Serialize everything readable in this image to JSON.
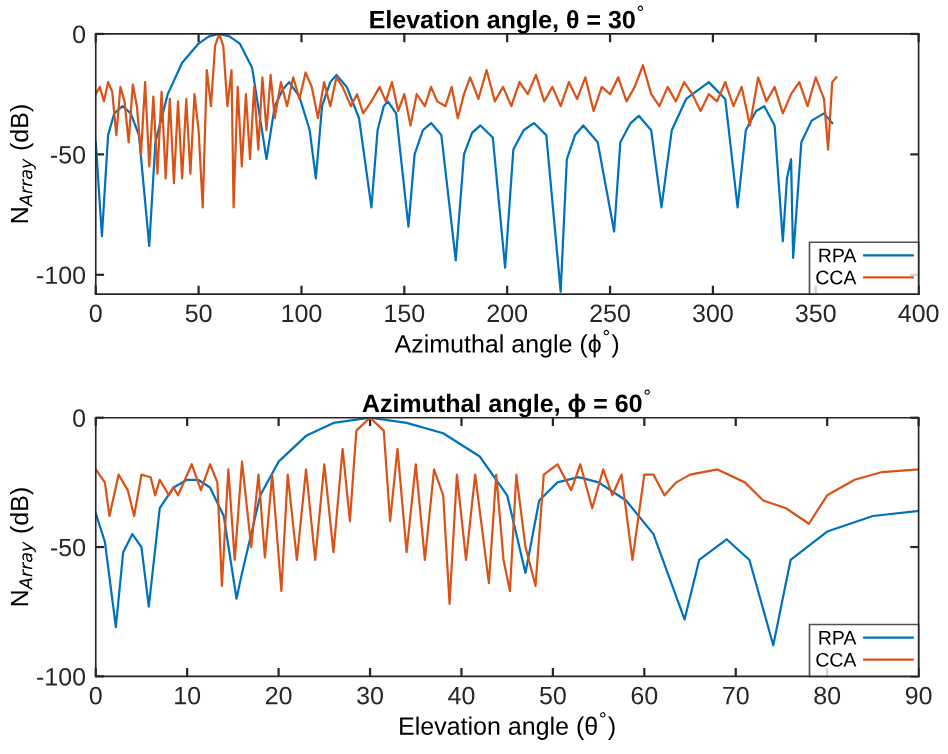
{
  "chart_data": [
    {
      "type": "line",
      "title": "Elevation angle, θ = 30$^{°}$",
      "xlabel": "Azimuthal angle (ϕ$^{°}$)",
      "ylabel": "N$_{Array}$ (dB)",
      "xlim": [
        0,
        400
      ],
      "xticks": [
        0,
        50,
        100,
        150,
        200,
        250,
        300,
        350,
        400
      ],
      "ylim": [
        -108,
        0
      ],
      "yticks": [
        -100,
        -50,
        0
      ],
      "grid": false,
      "legend": "bottom right",
      "series": [
        {
          "name": "RPA",
          "color": "#0072bd",
          "x": [
            0,
            3,
            6,
            9,
            13,
            17,
            21,
            26,
            29,
            35,
            42,
            50,
            55,
            60,
            65,
            70,
            76,
            83,
            87,
            91,
            94,
            99,
            104,
            107,
            110,
            114,
            117,
            122,
            128,
            134,
            137,
            140,
            142,
            146,
            152,
            155,
            159,
            163,
            168,
            175,
            179,
            183,
            187,
            193,
            199,
            203,
            208,
            213,
            219,
            226,
            229,
            233,
            237,
            244,
            252,
            255,
            260,
            264,
            270,
            275,
            280,
            287,
            298,
            306,
            312,
            316,
            321,
            325,
            330,
            334,
            336,
            338,
            339,
            343,
            348,
            354,
            358
          ],
          "values": [
            -45,
            -84,
            -42,
            -33,
            -30,
            -33,
            -42,
            -88,
            -45,
            -25,
            -12,
            -4,
            -1,
            0,
            -1,
            -4,
            -14,
            -52,
            -30,
            -23,
            -20,
            -26,
            -40,
            -60,
            -30,
            -20,
            -17,
            -22,
            -35,
            -72,
            -40,
            -30,
            -28,
            -33,
            -80,
            -50,
            -40,
            -37,
            -42,
            -94,
            -50,
            -41,
            -38,
            -43,
            -97,
            -48,
            -40,
            -37,
            -42,
            -107,
            -52,
            -42,
            -38,
            -45,
            -82,
            -45,
            -37,
            -34,
            -40,
            -72,
            -40,
            -27,
            -20,
            -27,
            -72,
            -40,
            -32,
            -30,
            -38,
            -86,
            -60,
            -52,
            -93,
            -45,
            -36,
            -33,
            -37
          ]
        },
        {
          "name": "CCA",
          "color": "#d95319",
          "x": [
            0,
            2,
            4,
            6,
            8,
            10,
            12,
            14,
            16,
            18,
            20,
            22,
            24,
            26,
            28,
            30,
            32,
            34,
            36,
            38,
            40,
            42,
            44,
            46,
            48,
            50,
            52,
            54,
            56,
            58,
            60,
            62,
            64,
            66,
            67,
            69,
            71,
            73,
            75,
            77,
            79,
            81,
            83,
            85,
            87,
            90,
            93,
            96,
            99,
            102,
            105,
            108,
            111,
            114,
            117,
            120,
            124,
            127,
            130,
            134,
            138,
            141,
            144,
            147,
            150,
            153,
            156,
            160,
            163,
            166,
            170,
            173,
            176,
            179,
            182,
            186,
            190,
            194,
            198,
            202,
            206,
            210,
            214,
            218,
            222,
            226,
            230,
            234,
            238,
            242,
            246,
            250,
            254,
            258,
            262,
            266,
            270,
            274,
            278,
            282,
            286,
            290,
            294,
            298,
            302,
            306,
            310,
            314,
            318,
            322,
            326,
            330,
            334,
            338,
            342,
            346,
            350,
            354,
            356,
            358,
            360
          ],
          "values": [
            -25,
            -22,
            -28,
            -20,
            -24,
            -42,
            -22,
            -28,
            -45,
            -21,
            -30,
            -50,
            -20,
            -55,
            -26,
            -58,
            -24,
            -60,
            -27,
            -62,
            -28,
            -60,
            -27,
            -58,
            -25,
            -40,
            -72,
            -15,
            -30,
            -5,
            0,
            -5,
            -30,
            -15,
            -72,
            -22,
            -55,
            -25,
            -52,
            -22,
            -48,
            -18,
            -40,
            -17,
            -35,
            -20,
            -30,
            -18,
            -27,
            -16,
            -22,
            -35,
            -20,
            -30,
            -18,
            -22,
            -30,
            -25,
            -33,
            -28,
            -22,
            -28,
            -20,
            -32,
            -25,
            -38,
            -25,
            -30,
            -22,
            -28,
            -30,
            -22,
            -35,
            -25,
            -18,
            -27,
            -15,
            -28,
            -22,
            -30,
            -20,
            -25,
            -17,
            -28,
            -22,
            -30,
            -20,
            -27,
            -18,
            -32,
            -22,
            -25,
            -18,
            -28,
            -22,
            -13,
            -25,
            -30,
            -22,
            -28,
            -20,
            -25,
            -32,
            -25,
            -28,
            -20,
            -30,
            -22,
            -38,
            -18,
            -28,
            -22,
            -33,
            -25,
            -20,
            -30,
            -18,
            -27,
            -48,
            -20,
            -18
          ]
        }
      ]
    },
    {
      "type": "line",
      "title": "Azimuthal angle, ϕ = 60$^{°}$",
      "xlabel": "Elevation angle (θ$^{°}$)",
      "ylabel": "N$_{Array}$ (dB)",
      "xlim": [
        0,
        90
      ],
      "xticks": [
        0,
        10,
        20,
        30,
        40,
        50,
        60,
        70,
        80,
        90
      ],
      "ylim": [
        -100,
        0
      ],
      "yticks": [
        -100,
        -50,
        0
      ],
      "grid": false,
      "legend": "bottom right",
      "series": [
        {
          "name": "RPA",
          "color": "#0072bd",
          "x": [
            0,
            1,
            2.2,
            3,
            4,
            5,
            5.8,
            7,
            8.5,
            10,
            11.2,
            12.5,
            14,
            15.4,
            16,
            18,
            20,
            23,
            26,
            30,
            34,
            38,
            42,
            45,
            47,
            48.5,
            50.5,
            52.8,
            55,
            58,
            61,
            64.4,
            66,
            69,
            71.5,
            74.1,
            76,
            80,
            85,
            90
          ],
          "values": [
            -37,
            -48,
            -81,
            -52,
            -45,
            -50,
            -73,
            -35,
            -27,
            -24,
            -24,
            -27,
            -38,
            -70,
            -60,
            -30,
            -17,
            -7,
            -2,
            0,
            -2,
            -6,
            -15,
            -30,
            -60,
            -32,
            -25,
            -23,
            -25,
            -32,
            -45,
            -78,
            -55,
            -47,
            -55,
            -88,
            -55,
            -44,
            -38,
            -36
          ]
        },
        {
          "name": "CCA",
          "color": "#d95319",
          "x": [
            0,
            1,
            1.5,
            2.5,
            3.5,
            4.2,
            5,
            6,
            6.5,
            7,
            8,
            8.5,
            9,
            10.5,
            11.5,
            12.5,
            13.3,
            13.8,
            14.5,
            15.2,
            16,
            17,
            17.8,
            18.5,
            19.3,
            20.3,
            21,
            22,
            23,
            24,
            25,
            26,
            27,
            27.8,
            28.5,
            30,
            31.5,
            32.2,
            33,
            34,
            35,
            36,
            37,
            38,
            38.7,
            39.5,
            40.5,
            41.5,
            43,
            43.8,
            44.6,
            45.3,
            46,
            47,
            48.1,
            49,
            50.5,
            52,
            53,
            54.3,
            55.5,
            56.5,
            57.5,
            58.7,
            60,
            61,
            62.2,
            63.5,
            65,
            68,
            71,
            73,
            75.5,
            78,
            80,
            83,
            86,
            90
          ],
          "values": [
            -20,
            -25,
            -38,
            -22,
            -28,
            -38,
            -22,
            -23,
            -30,
            -24,
            -30,
            -27,
            -30,
            -18,
            -28,
            -18,
            -25,
            -65,
            -20,
            -55,
            -17,
            -50,
            -22,
            -54,
            -22,
            -67,
            -22,
            -55,
            -20,
            -55,
            -18,
            -52,
            -12,
            -40,
            -5,
            0,
            -5,
            -40,
            -12,
            -52,
            -18,
            -55,
            -20,
            -30,
            -72,
            -22,
            -55,
            -22,
            -64,
            -22,
            -55,
            -67,
            -22,
            -50,
            -65,
            -22,
            -18,
            -28,
            -18,
            -35,
            -20,
            -30,
            -22,
            -55,
            -22,
            -22,
            -30,
            -25,
            -22,
            -20,
            -25,
            -32,
            -35,
            -41,
            -30,
            -24,
            -21,
            -20
          ]
        }
      ]
    }
  ]
}
